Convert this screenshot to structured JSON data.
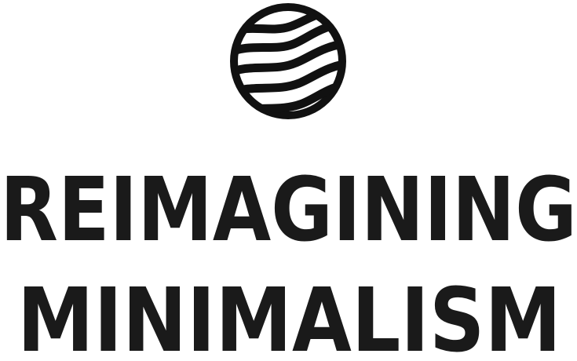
{
  "logo": {
    "icon": "striped-globe-icon",
    "color": "#111111"
  },
  "headline": {
    "line1": "REIMAGINING",
    "line2": "MINIMALISM",
    "color": "#1a1a1a"
  }
}
